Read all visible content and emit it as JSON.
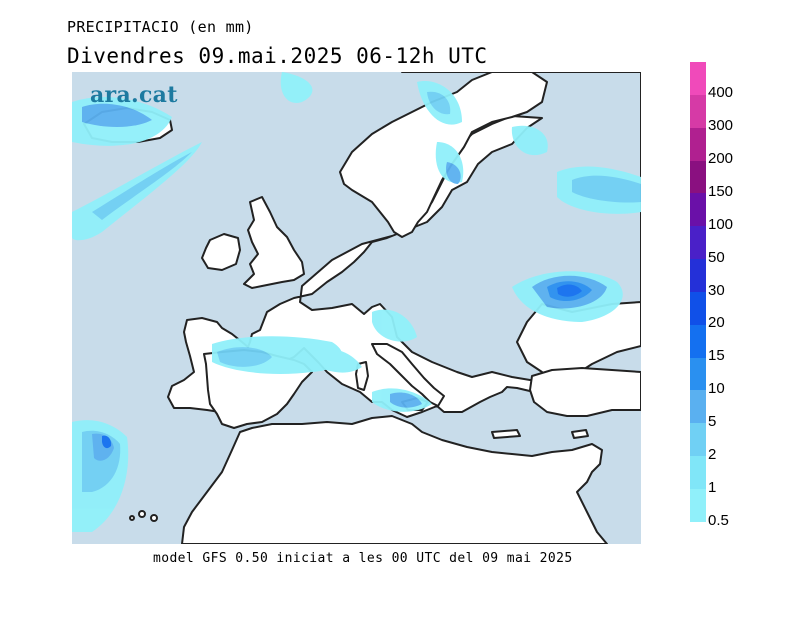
{
  "title_line1": "PRECIPITACIO (en mm)",
  "title_line2": "Divendres  09.mai.2025 06-12h UTC",
  "logo_text": "ara.cat",
  "footer_text": "model GFS 0.50 iniciat a les 00 UTC del 09 mai 2025",
  "legend": {
    "labels": [
      "400",
      "300",
      "200",
      "150",
      "100",
      "50",
      "30",
      "20",
      "15",
      "10",
      "5",
      "2",
      "1",
      "0.5"
    ],
    "colors": [
      "#f04aba",
      "#d63aa6",
      "#b02090",
      "#8a1080",
      "#6a10a8",
      "#4a20c8",
      "#2430d8",
      "#1050e8",
      "#1470f0",
      "#2a90f0",
      "#5ab0f0",
      "#70d0f4",
      "#80e6f8",
      "#90f0fa"
    ]
  },
  "colors": {
    "sea": "#c8dcea",
    "land": "#ffffff",
    "coast": "#222222"
  }
}
